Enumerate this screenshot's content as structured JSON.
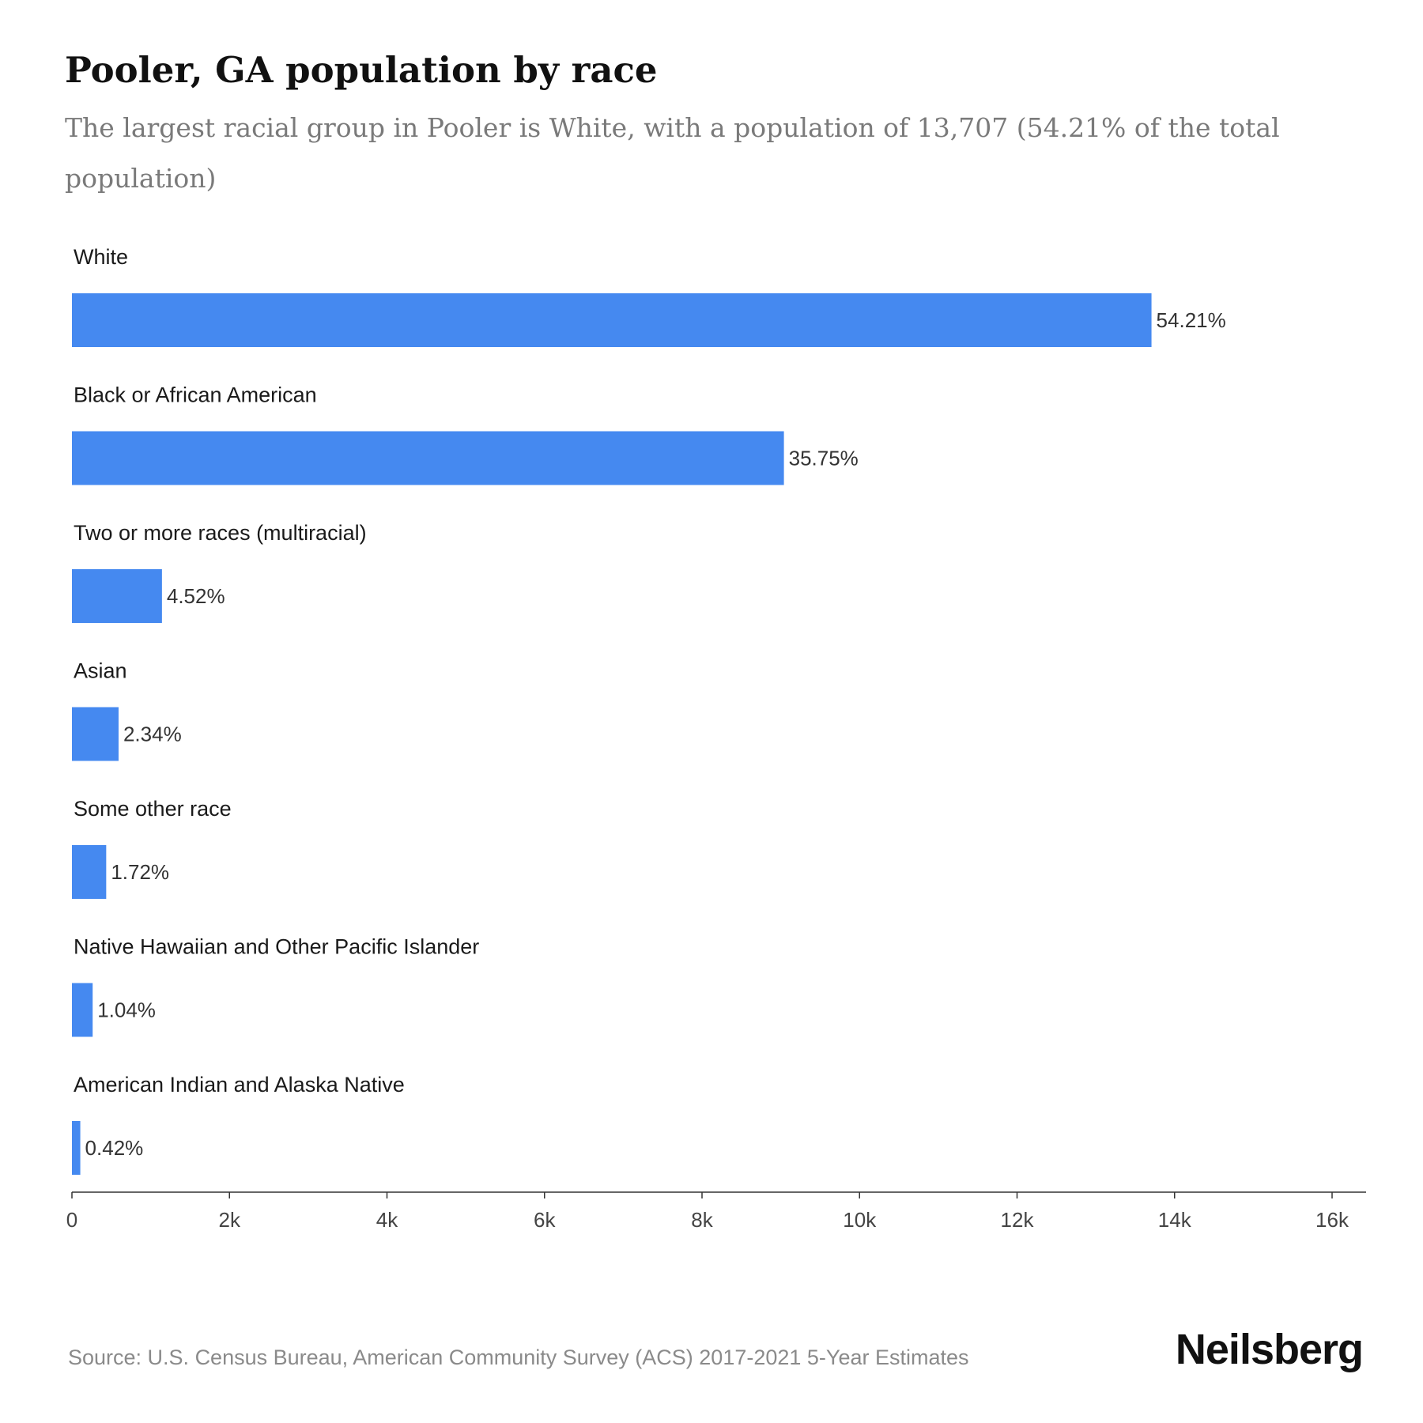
{
  "title": "Pooler, GA population by race",
  "subtitle": "The largest racial group in Pooler is White, with a population of 13,707 (54.21% of the total population)",
  "source": "Source: U.S. Census Bureau, American Community Survey (ACS) 2017-2021 5-Year Estimates",
  "brand": "Neilsberg",
  "colors": {
    "bar": "#4589f0",
    "axis": "#333333"
  },
  "chart_data": {
    "type": "bar",
    "orientation": "horizontal",
    "categories": [
      "White",
      "Black or African American",
      "Two or more races (multiracial)",
      "Asian",
      "Some other race",
      "Native Hawaiian and Other Pacific Islander",
      "American Indian and Alaska Native"
    ],
    "values": [
      13707,
      9040,
      1143,
      592,
      435,
      263,
      106
    ],
    "data_labels": [
      "54.21%",
      "35.75%",
      "4.52%",
      "2.34%",
      "1.72%",
      "1.04%",
      "0.42%"
    ],
    "xlim": [
      0,
      16000
    ],
    "xticks": [
      0,
      2000,
      4000,
      6000,
      8000,
      10000,
      12000,
      14000,
      16000
    ],
    "xtick_labels": [
      "0",
      "2k",
      "4k",
      "6k",
      "8k",
      "10k",
      "12k",
      "14k",
      "16k"
    ],
    "xlabel": "",
    "ylabel": "",
    "grid": false
  }
}
